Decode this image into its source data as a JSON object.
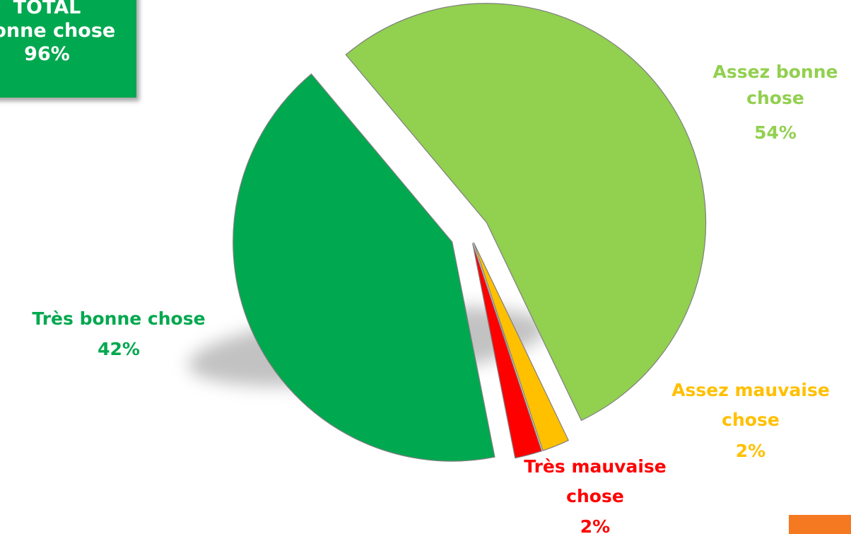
{
  "total_box": {
    "line1": "TOTAL",
    "line2": "Bonne chose",
    "line3": "96%"
  },
  "chart_data": {
    "type": "pie",
    "title": "",
    "slices": [
      {
        "name": "Assez bonne chose",
        "value": 54,
        "label": "54%",
        "color": "#92d050"
      },
      {
        "name": "Assez mauvaise chose",
        "value": 2,
        "label": "2%",
        "color": "#ffc000"
      },
      {
        "name": "Très mauvaise chose",
        "value": 2,
        "label": "2%",
        "color": "#ff0000"
      },
      {
        "name": "Très bonne chose",
        "value": 42,
        "label": "42%",
        "color": "#00a84f"
      }
    ],
    "legend": "none",
    "exploded": true
  }
}
